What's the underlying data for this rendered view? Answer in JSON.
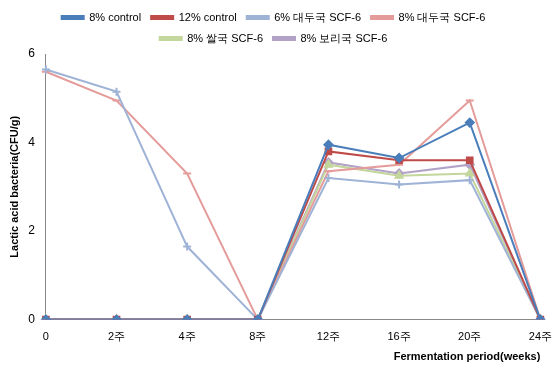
{
  "chart_data": {
    "type": "line",
    "x_label": "Fermentation period(weeks)",
    "y_label": "Lactic acid bacteria(CFU/g)",
    "categories": [
      "0",
      "2주",
      "4주",
      "8주",
      "12주",
      "16주",
      "20주",
      "24주"
    ],
    "series": [
      {
        "name": "8% control",
        "color": "#4a7ebb",
        "marker": "diamond",
        "values": [
          0,
          0,
          0,
          0,
          3.95,
          3.65,
          4.45,
          0
        ]
      },
      {
        "name": "12% control",
        "color": "#be4b48",
        "marker": "square",
        "values": [
          0,
          0,
          0,
          0,
          3.8,
          3.6,
          3.6,
          0
        ]
      },
      {
        "name": "6% 대두국 SCF-6",
        "color": "#9fb3d6",
        "marker": "plus",
        "values": [
          5.65,
          5.15,
          1.65,
          0,
          3.2,
          3.05,
          3.15,
          0
        ]
      },
      {
        "name": "8% 대두국 SCF-6",
        "color": "#e49c9a",
        "marker": "dash",
        "values": [
          5.6,
          4.95,
          3.3,
          0,
          3.35,
          3.5,
          4.95,
          0
        ]
      },
      {
        "name": "8% 쌀국 SCF-6",
        "color": "#c3d69b",
        "marker": "triangle",
        "values": [
          0,
          0,
          0,
          0,
          3.5,
          3.25,
          3.3,
          0
        ]
      },
      {
        "name": "8% 보리국 SCF-6",
        "color": "#b3a2c7",
        "marker": "diamond",
        "values": [
          0,
          0,
          0,
          0,
          3.55,
          3.3,
          3.5,
          0
        ]
      }
    ],
    "ylim": [
      0,
      6
    ],
    "yticks": [
      0,
      2,
      4,
      6
    ],
    "grid": false,
    "legend": "top"
  }
}
